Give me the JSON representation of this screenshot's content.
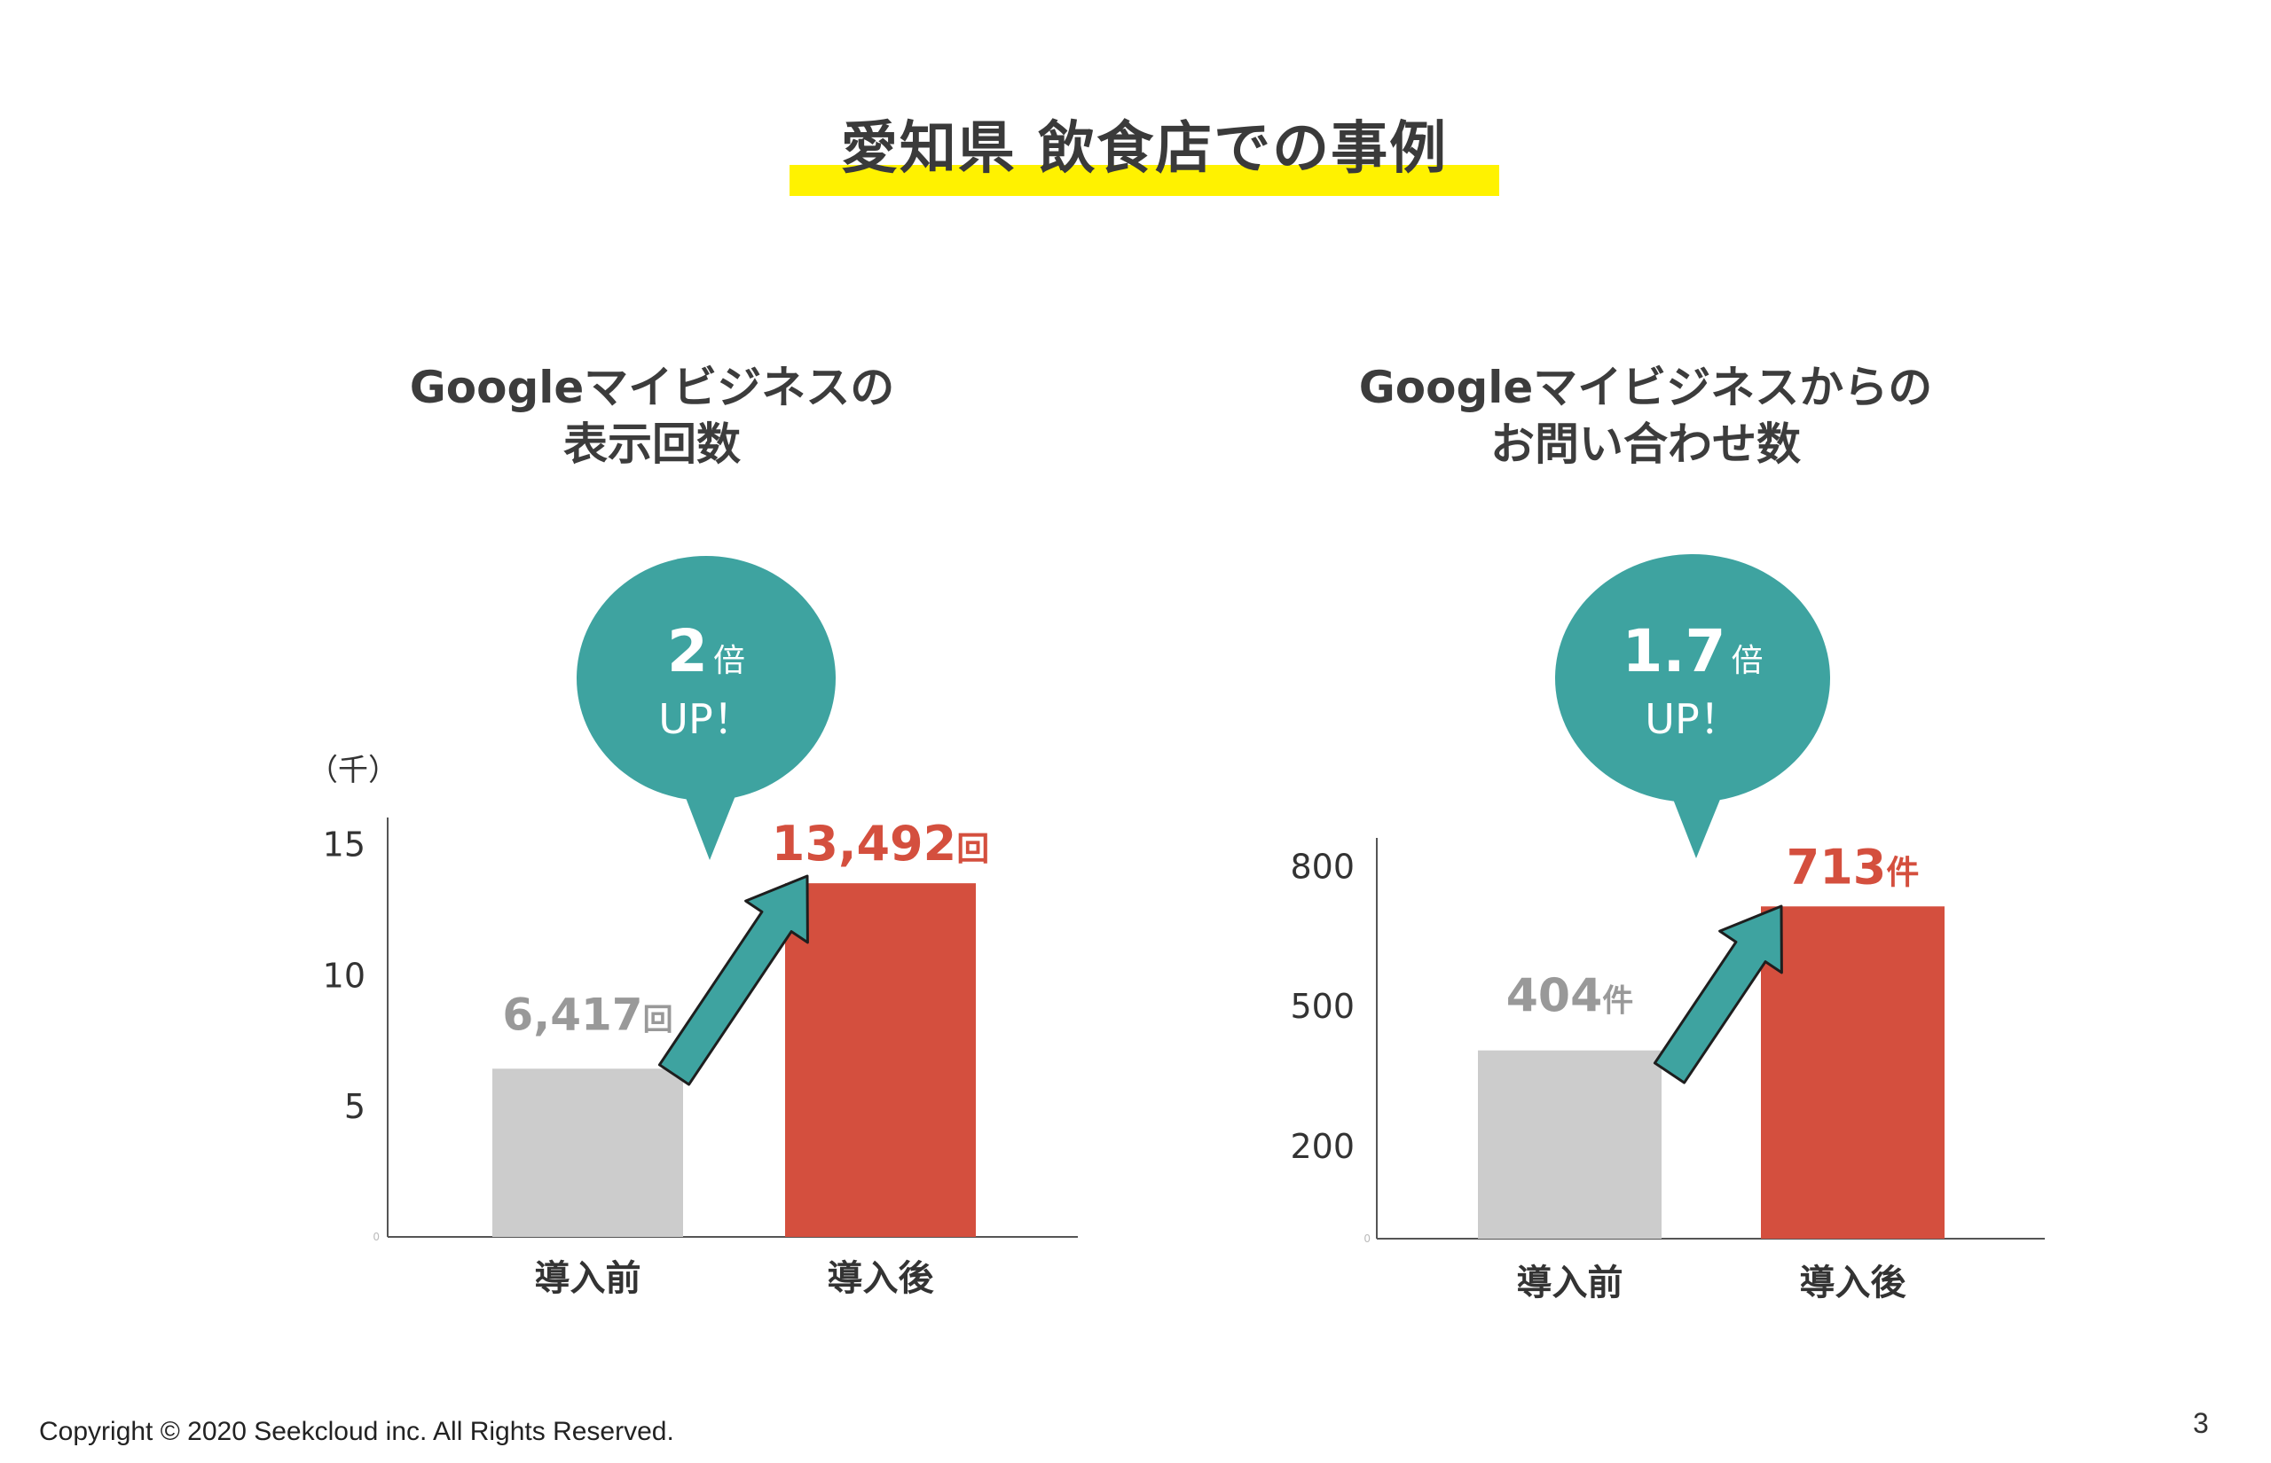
{
  "slide": {
    "title": "愛知県 飲食店での事例",
    "footer": "Copyright © 2020 Seekcloud inc. All Rights Reserved.",
    "page_number": "3"
  },
  "left_panel": {
    "title_lines": [
      "Googleマイビジネスの",
      "表示回数"
    ],
    "callout": {
      "multiplier": "2",
      "unit": "倍",
      "text": "UP！"
    }
  },
  "right_panel": {
    "title_lines": [
      "Googleマイビジネスからの",
      "お問い合わせ数"
    ],
    "callout": {
      "multiplier": "1.7",
      "unit": "倍",
      "text": "UP！"
    }
  },
  "colors": {
    "before_bar": "#cccccc",
    "after_bar": "#d44f3e",
    "after_label": "#d44f3e",
    "before_label": "#999999",
    "callout": "#3ea3a0",
    "title_highlight": "#fff200",
    "axis": "#555555"
  },
  "chart_data": [
    {
      "type": "bar",
      "categories": [
        "導入前",
        "導入後"
      ],
      "values": [
        6.417,
        13.492
      ],
      "value_labels": [
        {
          "number": "6,417",
          "unit": "回"
        },
        {
          "number": "13,492",
          "unit": "回"
        }
      ],
      "unit_label": "（千）",
      "ylim": [
        0,
        16
      ],
      "yticks": [
        0,
        5,
        10,
        15
      ],
      "ytick_labels": [
        "0",
        "5",
        "10",
        "15"
      ],
      "grid": false,
      "xlabel": "",
      "ylabel": ""
    },
    {
      "type": "bar",
      "categories": [
        "導入前",
        "導入後"
      ],
      "values": [
        404,
        713
      ],
      "value_labels": [
        {
          "number": "404",
          "unit": "件"
        },
        {
          "number": "713",
          "unit": "件"
        }
      ],
      "unit_label": "",
      "ylim": [
        0,
        860
      ],
      "yticks": [
        0,
        200,
        500,
        800
      ],
      "ytick_labels": [
        "0",
        "200",
        "500",
        "800"
      ],
      "grid": false,
      "xlabel": "",
      "ylabel": ""
    }
  ]
}
